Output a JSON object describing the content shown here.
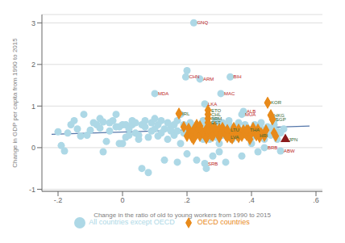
{
  "chart_data": {
    "type": "scatter",
    "xlabel": "Change in the ratio of old to young workers from 1990 to 2015",
    "ylabel": "Change in GDP per capita from 1990 to 2015",
    "xlim": [
      -0.25,
      0.62
    ],
    "ylim": [
      -1.05,
      3.2
    ],
    "xticks": [
      {
        "value": -0.2,
        "label": "-.2"
      },
      0,
      {
        "value": 0.2,
        "label": ".2"
      },
      {
        "value": 0.4,
        "label": ".4"
      },
      {
        "value": 0.6,
        "label": ".6"
      }
    ],
    "yticks": [
      -1,
      0,
      1,
      2,
      3
    ],
    "grid": true,
    "legend": "bottom",
    "series": [
      {
        "type": "line",
        "color": "#5577aa",
        "x": [
          -0.22,
          0.58
        ],
        "values": [
          0.32,
          0.52
        ]
      },
      {
        "name": "All countries except OECD",
        "type": "scatter",
        "marker": "circle",
        "color": "#add8e6",
        "x": [
          -0.2,
          -0.19,
          -0.18,
          -0.17,
          -0.16,
          -0.15,
          -0.14,
          -0.13,
          -0.12,
          -0.11,
          -0.1,
          -0.09,
          -0.08,
          -0.07,
          -0.07,
          -0.06,
          -0.06,
          -0.05,
          -0.04,
          -0.04,
          -0.03,
          -0.02,
          -0.02,
          -0.01,
          -0.01,
          0,
          0,
          0.01,
          0.01,
          0.02,
          0.02,
          0.03,
          0.03,
          0.04,
          0.04,
          0.05,
          0.05,
          0.06,
          0.06,
          0.07,
          0.07,
          0.08,
          0.08,
          0.09,
          0.09,
          0.1,
          0.1,
          0.11,
          0.11,
          0.12,
          0.12,
          0.13,
          0.13,
          0.14,
          0.14,
          0.15,
          0.15,
          0.16,
          0.16,
          0.17,
          0.17,
          0.17,
          0.18,
          0.18,
          0.19,
          0.19,
          0.2,
          0.2,
          0.21,
          0.21,
          0.22,
          0.22,
          0.23,
          0.23,
          0.23,
          0.24,
          0.25,
          0.25,
          0.25,
          0.26,
          0.26,
          0.26,
          0.27,
          0.27,
          0.28,
          0.28,
          0.28,
          0.29,
          0.29,
          0.29,
          0.3,
          0.3,
          0.3,
          0.31,
          0.31,
          0.32,
          0.32,
          0.33,
          0.33,
          0.34,
          0.34,
          0.35,
          0.35,
          0.36,
          0.36,
          0.37,
          0.37,
          0.38,
          0.38,
          0.39,
          0.4,
          0.4,
          0.41,
          0.41,
          0.42,
          0.42,
          0.43,
          0.43,
          0.44,
          0.44,
          0.45,
          0.46,
          0.46,
          0.47,
          0.47,
          0.48,
          0.48,
          0.49,
          0.5,
          0.221,
          0.196,
          0.334,
          0.305,
          0.255,
          0.255,
          0.44,
          0.49,
          0.375,
          0.37,
          0.1,
          0.24,
          0.2
        ],
        "values": [
          0.38,
          0.05,
          -0.08,
          0.35,
          0.55,
          0.65,
          0.45,
          0.28,
          0.8,
          0.3,
          0.42,
          0.6,
          0.55,
          0.7,
          0.47,
          0.62,
          -0.1,
          0.15,
          0.4,
          0.6,
          0.65,
          0.5,
          0.8,
          0.1,
          0.5,
          0.1,
          0.55,
          0.25,
          0.55,
          0.3,
          0.45,
          0.55,
          0.65,
          0.35,
          0.6,
          0.3,
          0.2,
          0.55,
          -0.5,
          0.5,
          0.65,
          0.25,
          -0.6,
          0.6,
          0.4,
          0.7,
          0.45,
          0.55,
          0.28,
          0.65,
          0.35,
          0.45,
          -0.3,
          0.6,
          0.2,
          0.5,
          0.4,
          0.55,
          0.3,
          0.4,
          0.65,
          -0.35,
          0.1,
          0.8,
          0.55,
          0.35,
          0.45,
          -0.15,
          0.5,
          0.6,
          0.4,
          0.3,
          0.45,
          -0.3,
          0.55,
          0.35,
          0.65,
          0.45,
          0.2,
          0.6,
          0.55,
          -0.5,
          0.4,
          0.2,
          0.35,
          0.55,
          -0.2,
          0.45,
          0.65,
          0.25,
          0.5,
          -0.1,
          0.1,
          0.6,
          0.3,
          0.45,
          -0.35,
          0.55,
          0.65,
          0.4,
          0.2,
          0.5,
          0.3,
          0.45,
          0.6,
          0.35,
          -0.2,
          0.55,
          0.4,
          0.45,
          0.25,
          0.1,
          0.55,
          0.3,
          0.4,
          -0.1,
          0.45,
          0.6,
          0.35,
          0.2,
          0.5,
          0.45,
          0.3,
          0.55,
          0.65,
          0.4,
          0.2,
          0.35,
          0.45,
          3.0,
          1.7,
          1.7,
          1.3,
          1.05,
          -0.38,
          0,
          -0.08,
          0.87,
          0.8,
          1.3,
          1.65,
          1.85
        ]
      },
      {
        "name": "OECD countries",
        "type": "scatter",
        "marker": "diamond",
        "color": "#e88a1a",
        "x": [
          0.175,
          0.19,
          0.2,
          0.205,
          0.21,
          0.215,
          0.22,
          0.22,
          0.23,
          0.23,
          0.235,
          0.24,
          0.24,
          0.245,
          0.25,
          0.255,
          0.26,
          0.26,
          0.265,
          0.27,
          0.27,
          0.275,
          0.28,
          0.28,
          0.285,
          0.29,
          0.295,
          0.3,
          0.3,
          0.305,
          0.31,
          0.315,
          0.32,
          0.325,
          0.33,
          0.335,
          0.34,
          0.34,
          0.345,
          0.35,
          0.355,
          0.36,
          0.36,
          0.365,
          0.37,
          0.375,
          0.38,
          0.385,
          0.39,
          0.395,
          0.4,
          0.405,
          0.41,
          0.415,
          0.42,
          0.425,
          0.43,
          0.44,
          0.445,
          0.45,
          0.46,
          0.465,
          0.47,
          0.475,
          0.175,
          0.265,
          0.265,
          0.265,
          0.265,
          0.325,
          0.45,
          0.46,
          0.465,
          0.415,
          0.385,
          0.325
        ],
        "values": [
          0.82,
          0.5,
          0.28,
          0.46,
          0.35,
          0.25,
          0.2,
          0.42,
          0.33,
          0.55,
          0.45,
          0.52,
          0.28,
          0.4,
          0.35,
          0.3,
          0.45,
          0.22,
          0.38,
          0.52,
          0.42,
          0.3,
          0.38,
          0.28,
          0.5,
          0.4,
          0.35,
          0.45,
          0.25,
          0.32,
          0.48,
          0.38,
          0.3,
          0.42,
          0.32,
          0.25,
          0.38,
          0.22,
          0.48,
          0.38,
          0.3,
          0.44,
          0.25,
          0.35,
          0.28,
          0.42,
          0.35,
          0.3,
          0.42,
          0.2,
          0.35,
          0.48,
          0.38,
          0.3,
          0.44,
          0.25,
          0.35,
          0.28,
          0.42,
          1.08,
          0.78,
          0.68,
          0.35,
          0.28,
          0.82,
          0.9,
          0.8,
          0.7,
          0.6,
          0.42,
          1.08,
          0.78,
          0.68,
          0.3,
          0.42,
          0.25
        ]
      },
      {
        "type": "scatter",
        "marker": "triangle",
        "color": "#8b1a1a",
        "x": [
          0.505
        ],
        "values": [
          0.2
        ]
      }
    ],
    "annotations": [
      {
        "x": 0.221,
        "y": 3.0,
        "text": "GNQ",
        "color": "#bb2222"
      },
      {
        "x": 0.196,
        "y": 1.7,
        "text": "CHN",
        "color": "#bb2222"
      },
      {
        "x": 0.334,
        "y": 1.7,
        "text": "BIH",
        "color": "#bb2222"
      },
      {
        "x": 0.305,
        "y": 1.3,
        "text": "MAC",
        "color": "#bb2222"
      },
      {
        "x": 0.255,
        "y": 1.05,
        "text": "LKA",
        "color": "#bb2222"
      },
      {
        "x": 0.255,
        "y": -0.38,
        "text": "SRB",
        "color": "#bb2222"
      },
      {
        "x": 0.44,
        "y": 0,
        "text": "BRB",
        "color": "#bb2222"
      },
      {
        "x": 0.49,
        "y": -0.08,
        "text": "ABW",
        "color": "#bb2222"
      },
      {
        "x": 0.375,
        "y": 0.87,
        "text": "ALB",
        "color": "#bb2222"
      },
      {
        "x": 0.37,
        "y": 0.8,
        "text": "MUA",
        "color": "#bb2222"
      },
      {
        "x": 0.1,
        "y": 1.3,
        "text": "MDA",
        "color": "#bb2222"
      },
      {
        "x": 0.24,
        "y": 1.65,
        "text": "ARM",
        "color": "#bb2222"
      },
      {
        "x": 0.175,
        "y": 0.82,
        "text": "IRL",
        "color": "#336633"
      },
      {
        "x": 0.265,
        "y": 0.9,
        "text": "ETO",
        "color": "#336633"
      },
      {
        "x": 0.265,
        "y": 0.8,
        "text": "CHL",
        "color": "#336633"
      },
      {
        "x": 0.265,
        "y": 0.7,
        "text": "BRM",
        "color": "#336633"
      },
      {
        "x": 0.265,
        "y": 0.6,
        "text": "EST",
        "color": "#336633"
      },
      {
        "x": 0.325,
        "y": 0.42,
        "text": "LTU",
        "color": "#336633"
      },
      {
        "x": 0.45,
        "y": 1.08,
        "text": "KOR",
        "color": "#336633"
      },
      {
        "x": 0.46,
        "y": 0.78,
        "text": "HKG",
        "color": "#336633"
      },
      {
        "x": 0.465,
        "y": 0.68,
        "text": "SGP",
        "color": "#336633"
      },
      {
        "x": 0.415,
        "y": 0.3,
        "text": "HRI",
        "color": "#336633"
      },
      {
        "x": 0.385,
        "y": 0.42,
        "text": "THA",
        "color": "#336633"
      },
      {
        "x": 0.325,
        "y": 0.25,
        "text": "LVA",
        "color": "#336633"
      },
      {
        "x": 0.505,
        "y": 0.2,
        "text": "JPN",
        "color": "#336633"
      }
    ]
  }
}
